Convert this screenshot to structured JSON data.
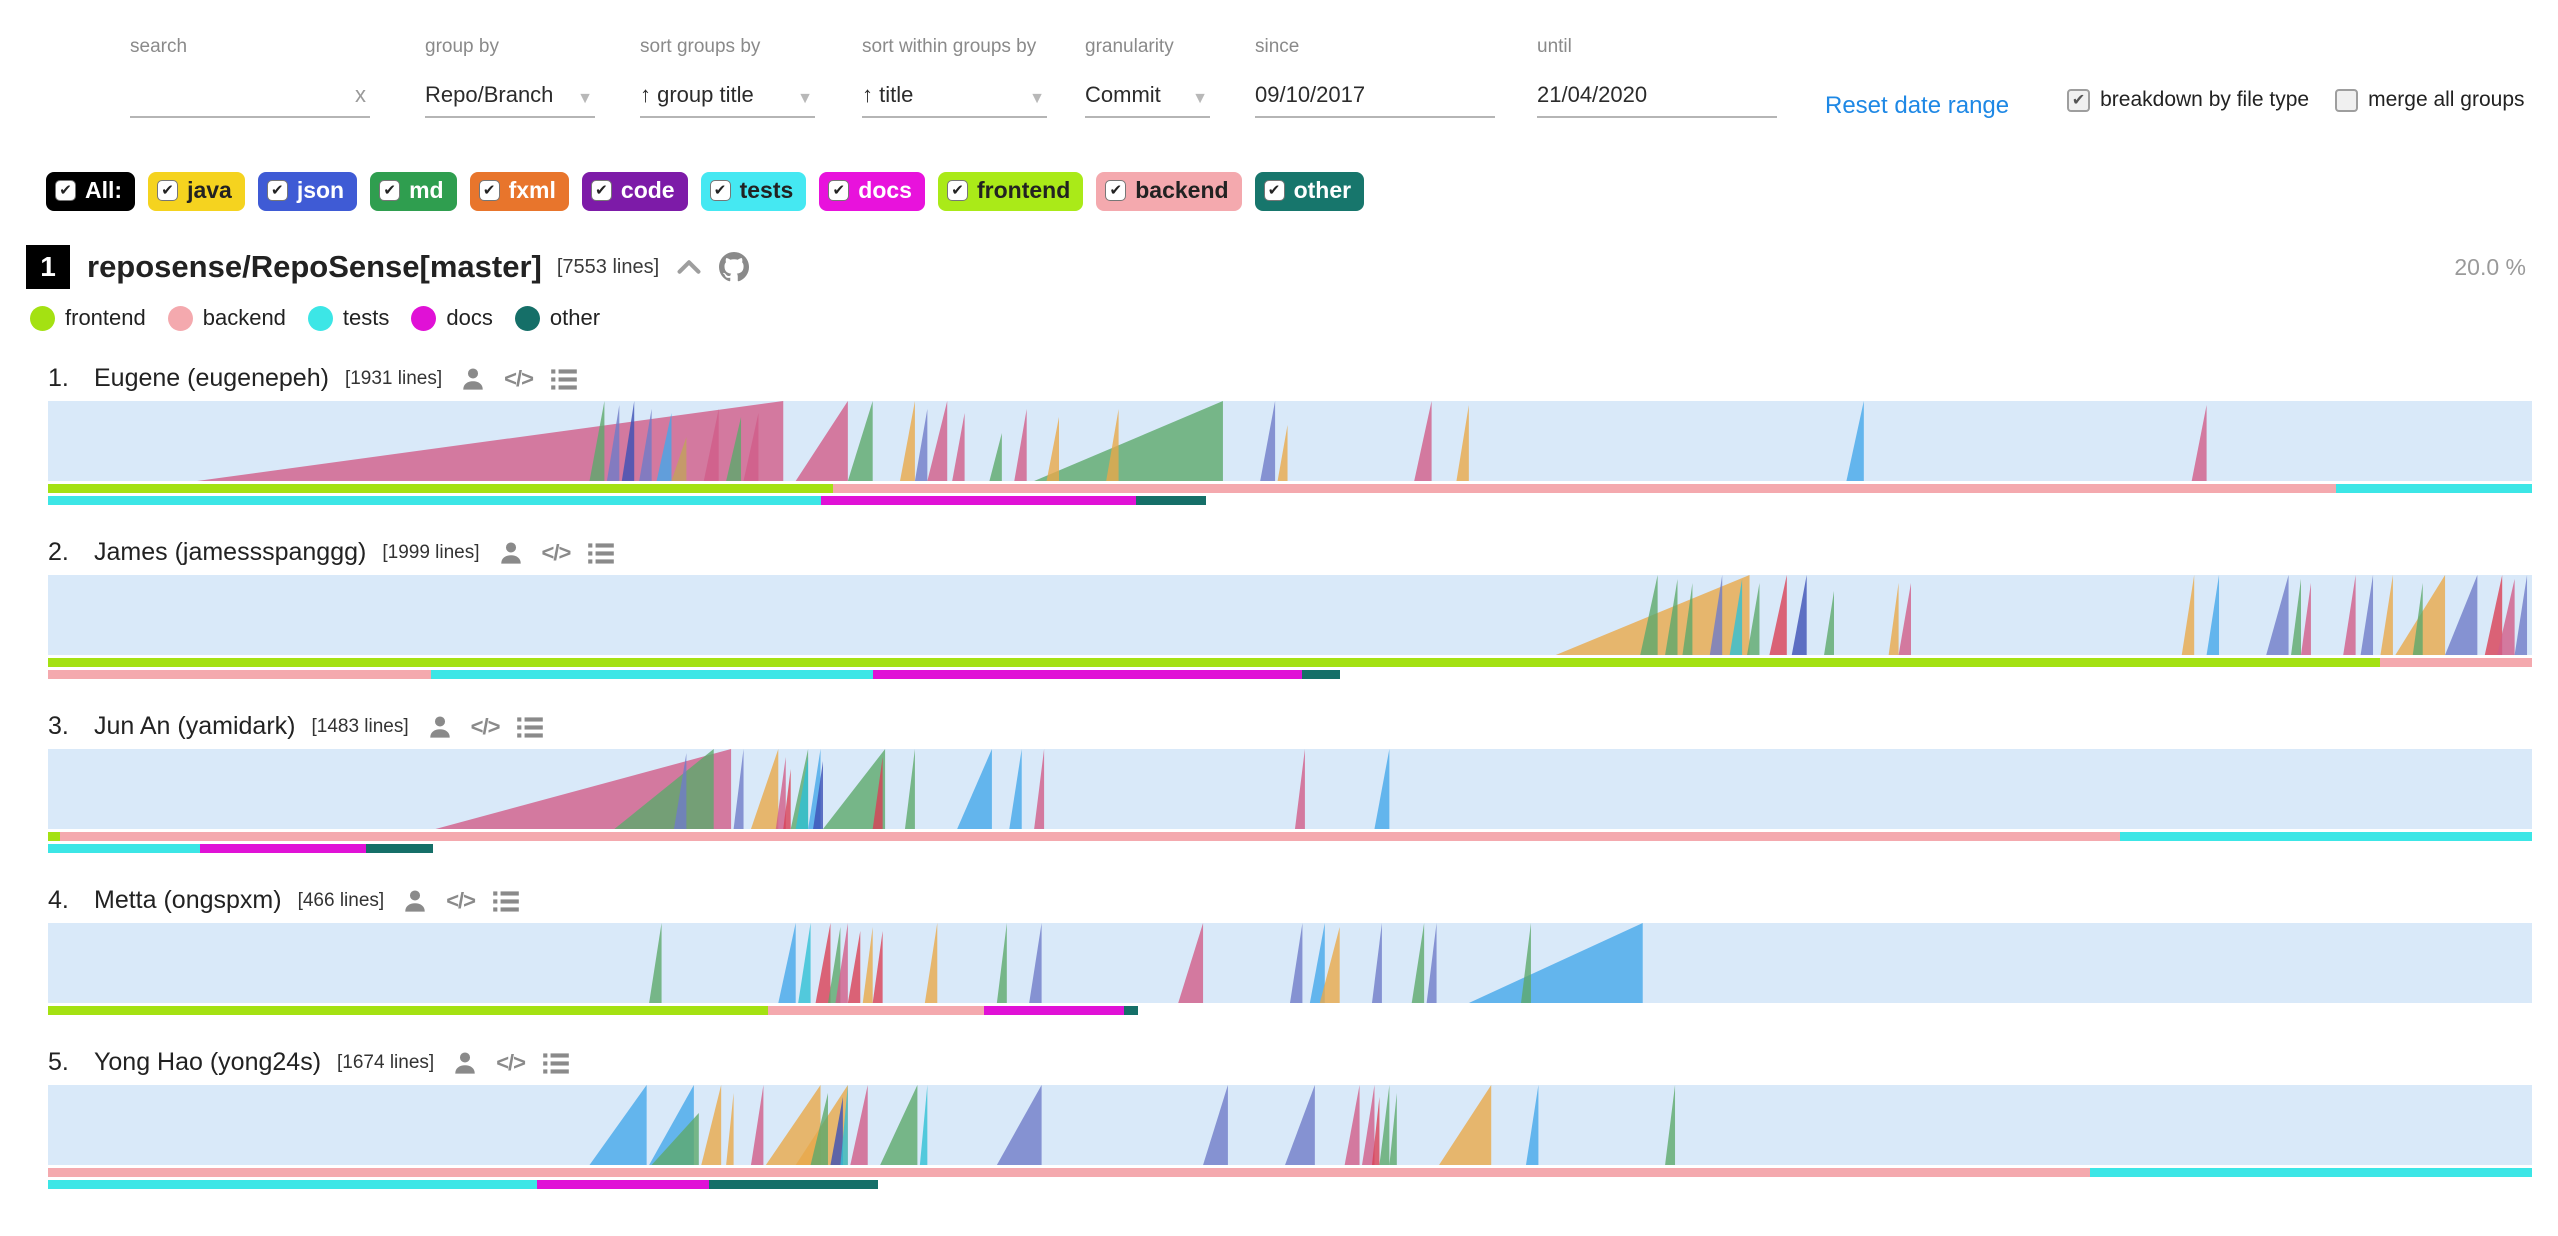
{
  "toolbar": {
    "search": {
      "label": "search",
      "value": "",
      "clear": "x"
    },
    "group_by": {
      "label": "group by",
      "value": "Repo/Branch"
    },
    "sort_groups": {
      "label": "sort groups by",
      "value": "↑ group title"
    },
    "sort_within": {
      "label": "sort within groups by",
      "value": "↑ title"
    },
    "granularity": {
      "label": "granularity",
      "value": "Commit"
    },
    "since": {
      "label": "since",
      "value": "09/10/2017"
    },
    "until": {
      "label": "until",
      "value": "21/04/2020"
    },
    "reset_link": "Reset date range",
    "breakdown_checkbox": {
      "label": "breakdown by file type",
      "checked": true
    },
    "merge_checkbox": {
      "label": "merge all groups",
      "checked": false
    }
  },
  "file_type_chips": [
    {
      "label": "All:",
      "bg": "#000000",
      "fg": "#ffffff",
      "checked": true
    },
    {
      "label": "java",
      "bg": "#f5d31f",
      "fg": "#222222",
      "checked": true
    },
    {
      "label": "json",
      "bg": "#3f5bd5",
      "fg": "#ffffff",
      "checked": true
    },
    {
      "label": "md",
      "bg": "#2f9e4f",
      "fg": "#ffffff",
      "checked": true
    },
    {
      "label": "fxml",
      "bg": "#e8752c",
      "fg": "#ffffff",
      "checked": true
    },
    {
      "label": "code",
      "bg": "#7d1ba8",
      "fg": "#ffffff",
      "checked": true
    },
    {
      "label": "tests",
      "bg": "#45e8f2",
      "fg": "#222222",
      "checked": true
    },
    {
      "label": "docs",
      "bg": "#e812dc",
      "fg": "#ffffff",
      "checked": true
    },
    {
      "label": "frontend",
      "bg": "#aaea18",
      "fg": "#222222",
      "checked": true
    },
    {
      "label": "backend",
      "bg": "#f4a9ae",
      "fg": "#222222",
      "checked": true
    },
    {
      "label": "other",
      "bg": "#17766c",
      "fg": "#ffffff",
      "checked": true
    }
  ],
  "repo": {
    "index": "1",
    "title": "reposense/RepoSense[master]",
    "lines": "[7553 lines]",
    "percent": "20.0 %",
    "legend": [
      {
        "label": "frontend",
        "color": "#a4e112"
      },
      {
        "label": "backend",
        "color": "#f4a9ae"
      },
      {
        "label": "tests",
        "color": "#3ce6e6"
      },
      {
        "label": "docs",
        "color": "#e011d6"
      },
      {
        "label": "other",
        "color": "#156f68"
      }
    ]
  },
  "ramp_palette": {
    "pink": "#d15d88",
    "green": "#5da96c",
    "indigo": "#6f7cc8",
    "skyblue": "#45a7ea",
    "orange": "#e9a94a",
    "cyan": "#2fc0d4",
    "red": "#d94055",
    "darkblue": "#3c50b5",
    "tan": "#c2a25b"
  },
  "bar_palette": {
    "frontend": "#a4e112",
    "backend": "#f4a9ae",
    "tests": "#3ce6e6",
    "docs": "#e011d6",
    "other": "#156f68"
  },
  "authors": [
    {
      "rank": "1.",
      "name": "Eugene (eugenepeh)",
      "lines": "[1931 lines]",
      "ramps": [
        [
          6.0,
          29.6,
          1,
          "pink"
        ],
        [
          21.8,
          22.4,
          1,
          "green"
        ],
        [
          22.5,
          23.0,
          0.95,
          "indigo"
        ],
        [
          23.1,
          23.6,
          1,
          "darkblue"
        ],
        [
          23.8,
          24.3,
          0.9,
          "indigo"
        ],
        [
          24.5,
          25.1,
          0.85,
          "skyblue"
        ],
        [
          25.1,
          25.7,
          0.55,
          "tan"
        ],
        [
          26.4,
          27.0,
          0.9,
          "pink"
        ],
        [
          27.3,
          27.9,
          0.8,
          "green"
        ],
        [
          28.0,
          28.6,
          0.85,
          "pink"
        ],
        [
          30.1,
          32.2,
          1,
          "pink"
        ],
        [
          32.2,
          33.2,
          1,
          "green"
        ],
        [
          34.3,
          34.9,
          1,
          "orange"
        ],
        [
          34.9,
          35.4,
          0.9,
          "indigo"
        ],
        [
          35.4,
          36.2,
          1,
          "pink"
        ],
        [
          36.4,
          36.9,
          0.85,
          "pink"
        ],
        [
          37.9,
          38.4,
          0.6,
          "green"
        ],
        [
          38.9,
          39.4,
          0.9,
          "pink"
        ],
        [
          39.7,
          47.3,
          1,
          "green"
        ],
        [
          40.2,
          40.7,
          0.8,
          "orange"
        ],
        [
          42.6,
          43.1,
          0.9,
          "orange"
        ],
        [
          48.8,
          49.4,
          1,
          "indigo"
        ],
        [
          49.5,
          49.9,
          0.7,
          "orange"
        ],
        [
          55.0,
          55.7,
          1,
          "pink"
        ],
        [
          56.7,
          57.2,
          0.95,
          "orange"
        ],
        [
          72.4,
          73.1,
          1,
          "skyblue"
        ],
        [
          86.3,
          86.9,
          0.95,
          "pink"
        ]
      ],
      "bars": [
        [
          [
            "frontend",
            31.6
          ],
          [
            "backend",
            60.5
          ],
          [
            "tests",
            7.9
          ]
        ],
        [
          [
            "tests",
            31.1
          ],
          [
            "docs",
            12.7
          ],
          [
            "other",
            2.8
          ]
        ]
      ]
    },
    {
      "rank": "2.",
      "name": "James (jamessspanggg)",
      "lines": "[1999 lines]",
      "ramps": [
        [
          60.7,
          68.5,
          1,
          "orange"
        ],
        [
          64.1,
          64.8,
          1,
          "green"
        ],
        [
          65.1,
          65.6,
          0.95,
          "green"
        ],
        [
          65.8,
          66.2,
          0.9,
          "green"
        ],
        [
          66.9,
          67.4,
          1,
          "indigo"
        ],
        [
          67.7,
          68.2,
          0.95,
          "cyan"
        ],
        [
          68.4,
          68.9,
          0.9,
          "green"
        ],
        [
          69.3,
          70.0,
          1,
          "red"
        ],
        [
          70.2,
          70.8,
          1,
          "darkblue"
        ],
        [
          71.5,
          71.9,
          0.8,
          "green"
        ],
        [
          74.1,
          74.5,
          0.9,
          "orange"
        ],
        [
          74.5,
          75.0,
          0.9,
          "pink"
        ],
        [
          85.9,
          86.4,
          1,
          "orange"
        ],
        [
          86.9,
          87.4,
          1,
          "skyblue"
        ],
        [
          89.3,
          90.2,
          1,
          "indigo"
        ],
        [
          90.3,
          90.7,
          0.95,
          "green"
        ],
        [
          90.7,
          91.1,
          0.9,
          "pink"
        ],
        [
          92.4,
          92.9,
          1,
          "pink"
        ],
        [
          93.1,
          93.6,
          1,
          "indigo"
        ],
        [
          93.9,
          94.4,
          1,
          "orange"
        ],
        [
          94.5,
          96.5,
          1,
          "orange"
        ],
        [
          95.2,
          95.6,
          0.9,
          "green"
        ],
        [
          96.5,
          97.8,
          1,
          "indigo"
        ],
        [
          98.1,
          98.8,
          1,
          "red"
        ],
        [
          98.6,
          99.3,
          0.95,
          "pink"
        ],
        [
          99.3,
          99.8,
          1,
          "indigo"
        ]
      ],
      "bars": [
        [
          [
            "frontend",
            93.9
          ],
          [
            "backend",
            6.1
          ]
        ],
        [
          [
            "backend",
            15.4
          ],
          [
            "tests",
            17.8
          ],
          [
            "docs",
            17.3
          ],
          [
            "other",
            1.5
          ]
        ]
      ]
    },
    {
      "rank": "3.",
      "name": "Jun An (yamidark)",
      "lines": "[1483 lines]",
      "ramps": [
        [
          15.6,
          27.5,
          1,
          "pink"
        ],
        [
          22.8,
          26.8,
          1,
          "green"
        ],
        [
          25.2,
          25.7,
          0.95,
          "indigo"
        ],
        [
          27.6,
          28.0,
          1,
          "indigo"
        ],
        [
          28.3,
          29.4,
          1,
          "orange"
        ],
        [
          29.3,
          29.7,
          0.9,
          "pink"
        ],
        [
          29.6,
          29.9,
          0.75,
          "red"
        ],
        [
          29.9,
          30.6,
          1,
          "green"
        ],
        [
          30.1,
          30.6,
          0.9,
          "cyan"
        ],
        [
          30.6,
          31.1,
          1,
          "skyblue"
        ],
        [
          30.8,
          31.2,
          0.85,
          "darkblue"
        ],
        [
          31.2,
          33.7,
          1,
          "green"
        ],
        [
          33.2,
          33.6,
          0.9,
          "red"
        ],
        [
          34.5,
          34.9,
          1,
          "green"
        ],
        [
          36.6,
          38.0,
          1,
          "skyblue"
        ],
        [
          38.7,
          39.2,
          1,
          "skyblue"
        ],
        [
          39.7,
          40.1,
          1,
          "pink"
        ],
        [
          50.2,
          50.6,
          1,
          "pink"
        ],
        [
          53.4,
          54.0,
          1,
          "skyblue"
        ]
      ],
      "bars": [
        [
          [
            "frontend",
            0.5
          ],
          [
            "backend",
            82.9
          ],
          [
            "tests",
            16.6
          ]
        ],
        [
          [
            "tests",
            6.1
          ],
          [
            "docs",
            6.7
          ],
          [
            "other",
            2.7
          ]
        ]
      ]
    },
    {
      "rank": "4.",
      "name": "Metta (ongspxm)",
      "lines": "[466 lines]",
      "ramps": [
        [
          24.2,
          24.7,
          1,
          "green"
        ],
        [
          29.4,
          30.1,
          1,
          "skyblue"
        ],
        [
          30.2,
          30.7,
          1,
          "cyan"
        ],
        [
          30.9,
          31.5,
          1,
          "red"
        ],
        [
          31.4,
          31.9,
          0.95,
          "green"
        ],
        [
          31.7,
          32.2,
          1,
          "pink"
        ],
        [
          32.2,
          32.7,
          0.9,
          "red"
        ],
        [
          32.8,
          33.2,
          0.95,
          "orange"
        ],
        [
          33.2,
          33.6,
          0.9,
          "red"
        ],
        [
          35.3,
          35.8,
          1,
          "orange"
        ],
        [
          38.2,
          38.6,
          1,
          "green"
        ],
        [
          39.5,
          40.0,
          1,
          "indigo"
        ],
        [
          45.5,
          46.5,
          1,
          "pink"
        ],
        [
          50.0,
          50.5,
          1,
          "indigo"
        ],
        [
          50.8,
          51.4,
          1,
          "skyblue"
        ],
        [
          51.2,
          52.0,
          0.95,
          "orange"
        ],
        [
          53.3,
          53.7,
          1,
          "indigo"
        ],
        [
          54.9,
          55.4,
          1,
          "green"
        ],
        [
          55.5,
          55.9,
          1,
          "indigo"
        ],
        [
          57.2,
          64.2,
          1,
          "skyblue"
        ],
        [
          59.3,
          59.7,
          1,
          "green"
        ]
      ],
      "bars": [
        [
          [
            "frontend",
            29.0
          ],
          [
            "backend",
            8.7
          ],
          [
            "docs",
            5.6
          ],
          [
            "other",
            0.6
          ]
        ]
      ]
    },
    {
      "rank": "5.",
      "name": "Yong Hao (yong24s)",
      "lines": "[1674 lines]",
      "ramps": [
        [
          21.8,
          24.1,
          1,
          "skyblue"
        ],
        [
          24.2,
          26.0,
          1,
          "skyblue"
        ],
        [
          24.3,
          26.2,
          0.65,
          "green"
        ],
        [
          26.3,
          27.1,
          1,
          "orange"
        ],
        [
          27.3,
          27.6,
          0.9,
          "orange"
        ],
        [
          28.3,
          28.8,
          1,
          "pink"
        ],
        [
          28.9,
          31.1,
          1,
          "orange"
        ],
        [
          30.1,
          32.2,
          1,
          "orange"
        ],
        [
          30.7,
          31.4,
          0.9,
          "green"
        ],
        [
          31.5,
          32.0,
          0.85,
          "darkblue"
        ],
        [
          31.9,
          32.2,
          1,
          "cyan"
        ],
        [
          32.3,
          33.0,
          1,
          "pink"
        ],
        [
          33.5,
          35.0,
          1,
          "green"
        ],
        [
          35.1,
          35.4,
          1,
          "cyan"
        ],
        [
          38.2,
          40.0,
          1,
          "indigo"
        ],
        [
          46.5,
          47.5,
          1,
          "indigo"
        ],
        [
          49.8,
          51.0,
          1,
          "indigo"
        ],
        [
          52.2,
          52.8,
          1,
          "pink"
        ],
        [
          52.9,
          53.4,
          1,
          "pink"
        ],
        [
          53.3,
          53.6,
          0.85,
          "red"
        ],
        [
          53.6,
          54.0,
          1,
          "green"
        ],
        [
          54.0,
          54.3,
          0.9,
          "green"
        ],
        [
          56.0,
          58.1,
          1,
          "orange"
        ],
        [
          59.5,
          60.0,
          1,
          "skyblue"
        ],
        [
          65.1,
          65.5,
          1,
          "green"
        ]
      ],
      "bars": [
        [
          [
            "backend",
            82.2
          ],
          [
            "tests",
            17.8
          ]
        ],
        [
          [
            "tests",
            19.7
          ],
          [
            "docs",
            6.9
          ],
          [
            "other",
            6.8
          ]
        ]
      ]
    }
  ]
}
